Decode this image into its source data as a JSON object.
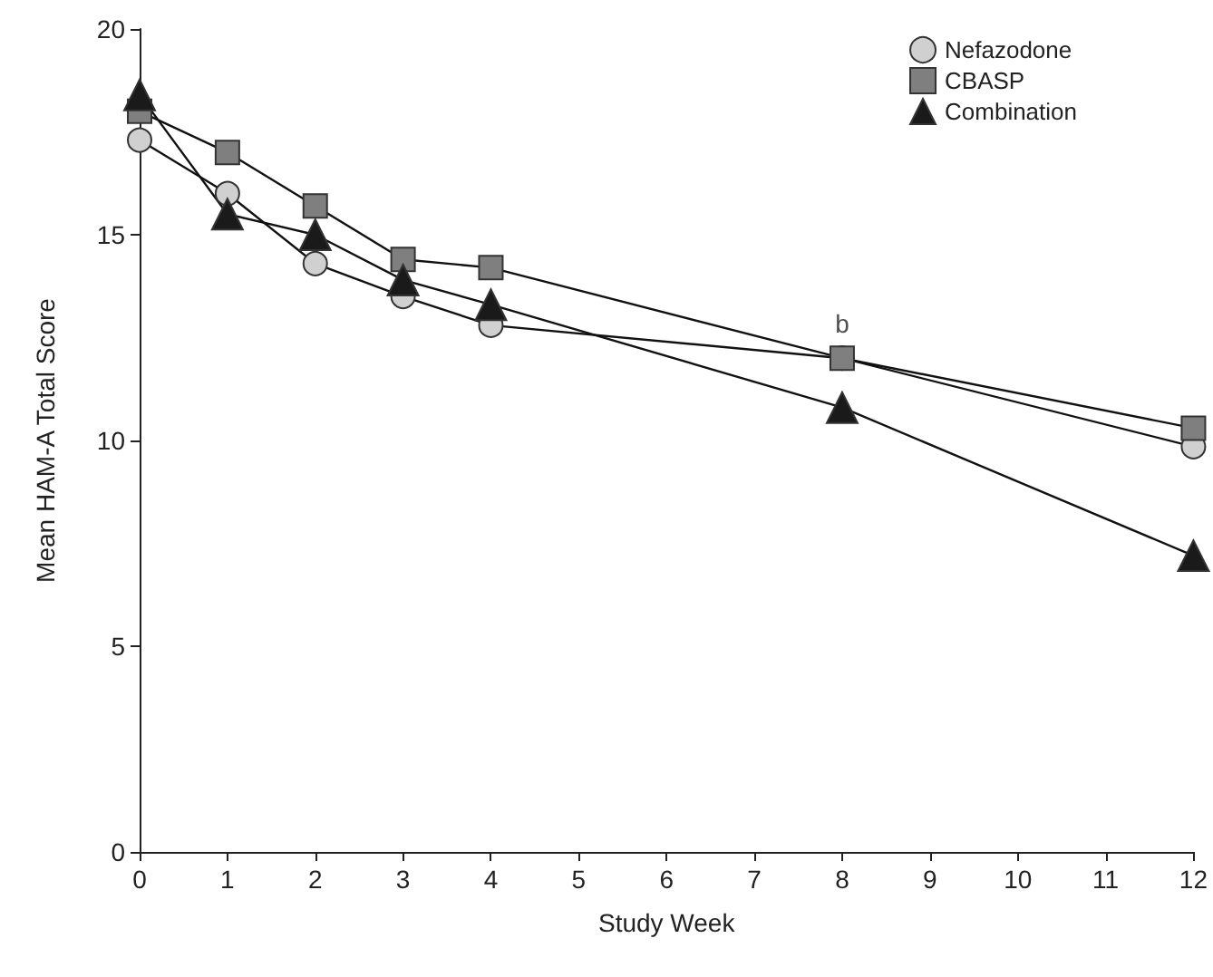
{
  "chart_data": {
    "type": "line",
    "xlabel": "Study Week",
    "ylabel": "Mean HAM-A Total Score",
    "x": [
      0,
      1,
      2,
      3,
      4,
      8,
      12
    ],
    "series": [
      {
        "name": "Nefazodone",
        "color": "#d0d0d0",
        "marker": "circle",
        "values": [
          17.3,
          16.0,
          14.3,
          13.5,
          12.8,
          12.0,
          9.85
        ]
      },
      {
        "name": "CBASP",
        "color": "#7f7f7f",
        "marker": "square",
        "values": [
          18.0,
          17.0,
          15.7,
          14.4,
          14.2,
          12.0,
          10.3
        ]
      },
      {
        "name": "Combination",
        "color": "#1a1a1a",
        "marker": "triangle",
        "values": [
          18.4,
          15.5,
          15.0,
          13.9,
          13.3,
          10.8,
          7.2
        ]
      }
    ],
    "xlim": [
      0,
      12
    ],
    "xticks": [
      0,
      1,
      2,
      3,
      4,
      5,
      6,
      7,
      8,
      9,
      10,
      11,
      12
    ],
    "ylim": [
      0,
      20
    ],
    "yticks": [
      0,
      5,
      10,
      15,
      20
    ],
    "annotations": [
      {
        "text": "b",
        "x": 8,
        "y": 12
      }
    ],
    "grid": false,
    "legend": "top right",
    "line_style": "solid"
  }
}
